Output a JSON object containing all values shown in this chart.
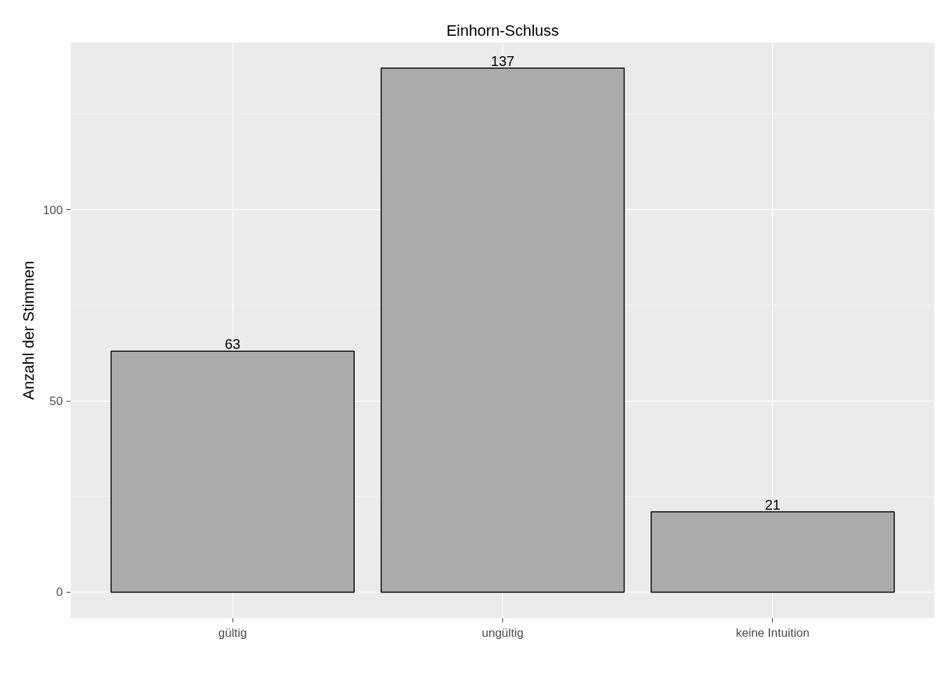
{
  "chart_data": {
    "type": "bar",
    "title": "Einhorn-Schluss",
    "ylabel": "Anzahl der Stimmen",
    "categories": [
      "gültig",
      "ungültig",
      "keine Intuition"
    ],
    "values": [
      63,
      137,
      21
    ],
    "color": "#ababab",
    "ylim": [
      -6.8,
      143.7
    ],
    "yticks": [
      0,
      50,
      100
    ],
    "grid": true,
    "data_labels": true
  }
}
